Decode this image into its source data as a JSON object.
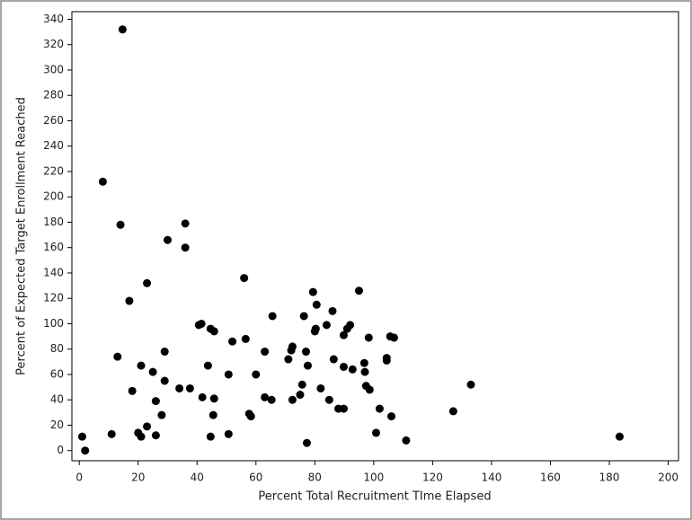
{
  "chart_data": {
    "type": "scatter",
    "x_label": "Percent Total Recruitment TIme Elapsed",
    "y_label": "Percent of Expected Target Enrollment Reached",
    "color": "#000000",
    "x": [
      1,
      2,
      14.7,
      8,
      14,
      11,
      13,
      17,
      18,
      21,
      20,
      21,
      23,
      23,
      25,
      26,
      26,
      28,
      29,
      29,
      30,
      34,
      36,
      36,
      37.6,
      40.6,
      41.5,
      41.8,
      43.7,
      44.6,
      44.6,
      45.8,
      45.5,
      45.8,
      50.7,
      50.7,
      52,
      56,
      56.5,
      57.7,
      58.3,
      60,
      63,
      63,
      65.6,
      65.3,
      71,
      72,
      72.4,
      72.4,
      75,
      75.7,
      76.3,
      77,
      77.6,
      77.3,
      79.4,
      80,
      80.6,
      80.3,
      82,
      84,
      84.9,
      86,
      86.4,
      88,
      89.8,
      89.8,
      89.8,
      91,
      92,
      92.8,
      95,
      96.8,
      97,
      97.4,
      98.3,
      98.6,
      100.8,
      102,
      104.4,
      104.4,
      105.6,
      106,
      106.9,
      111,
      127,
      133,
      183.5
    ],
    "values": [
      11,
      0,
      332,
      212,
      178,
      13,
      74,
      118,
      47,
      67,
      14,
      11,
      132,
      19,
      62,
      39,
      12,
      28,
      78,
      55,
      166,
      49,
      179,
      160,
      49,
      99,
      100,
      42,
      67,
      96,
      11,
      94,
      28,
      41,
      13,
      60,
      86,
      136,
      88,
      29,
      27,
      60,
      78,
      42,
      106,
      40,
      72,
      79,
      82,
      40,
      44,
      52,
      106,
      78,
      67,
      6,
      125,
      94,
      115,
      96,
      49,
      99,
      40,
      110,
      72,
      33,
      91,
      66,
      33,
      96,
      99,
      64,
      126,
      69,
      62,
      51,
      89,
      48,
      14,
      33,
      73,
      71,
      90,
      27,
      89,
      8,
      31,
      52,
      11
    ],
    "xlim": [
      -2.5,
      203.5
    ],
    "ylim": [
      -8,
      346
    ],
    "xticks": [
      0,
      20,
      40,
      60,
      80,
      100,
      120,
      140,
      160,
      180,
      200
    ],
    "yticks": [
      0,
      20,
      40,
      60,
      80,
      100,
      120,
      140,
      160,
      180,
      200,
      220,
      240,
      260,
      280,
      300,
      320,
      340
    ]
  }
}
